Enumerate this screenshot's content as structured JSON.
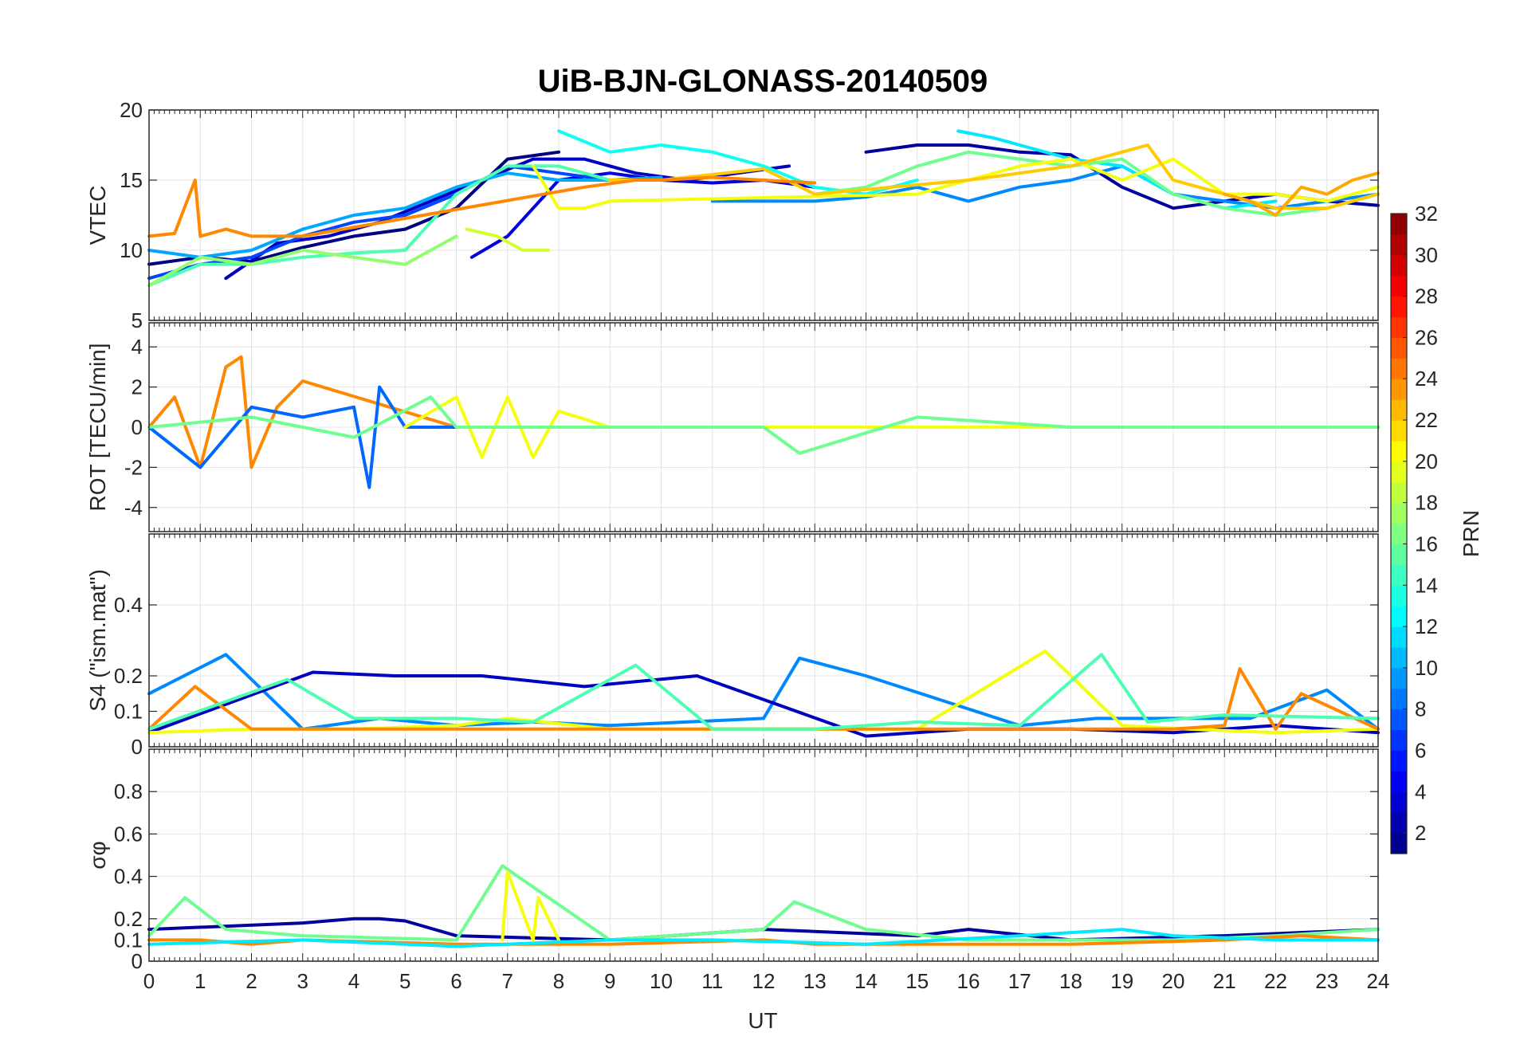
{
  "title": "UiB-BJN-GLONASS-20140509",
  "chart_data": {
    "type": "line",
    "title": "UiB-BJN-GLONASS-20140509",
    "xlabel": "UT",
    "xlim": [
      0,
      24
    ],
    "x_ticks": [
      "0",
      "1",
      "2",
      "3",
      "4",
      "5",
      "6",
      "7",
      "8",
      "9",
      "10",
      "11",
      "12",
      "13",
      "14",
      "15",
      "16",
      "17",
      "18",
      "19",
      "20",
      "21",
      "22",
      "23",
      "24"
    ],
    "grid": true,
    "colorbar": {
      "label": "PRN",
      "colormap": "jet",
      "range": [
        1,
        32
      ],
      "ticks": [
        "2",
        "4",
        "6",
        "8",
        "10",
        "12",
        "14",
        "16",
        "18",
        "20",
        "22",
        "24",
        "26",
        "28",
        "30",
        "32"
      ],
      "placement": "right"
    },
    "panels": [
      {
        "ylabel": "VTEC",
        "ylim": [
          5,
          20
        ],
        "y_ticks": [
          "5",
          "10",
          "15",
          "20"
        ],
        "series": [
          {
            "prn": 1,
            "x": [
              0,
              1,
              2,
              3,
              4,
              5,
              6,
              7,
              8
            ],
            "y": [
              9,
              9.5,
              9.2,
              10.2,
              11,
              11.5,
              13,
              16.5,
              17
            ]
          },
          {
            "prn": 3,
            "x": [
              1.5,
              2.5,
              3.5,
              4.5,
              5.5,
              6.5,
              7.5,
              8.5,
              9.5,
              10.5,
              11.5,
              12.5
            ],
            "y": [
              8,
              10.5,
              11,
              12,
              13.5,
              15,
              16.5,
              16.5,
              15.5,
              15,
              15.5,
              16
            ]
          },
          {
            "prn": 4,
            "x": [
              6.3,
              7,
              7.5,
              8,
              9,
              10,
              11,
              12,
              13
            ],
            "y": [
              9.5,
              11,
              13,
              15,
              15.5,
              15,
              14.8,
              15,
              14.5
            ]
          },
          {
            "prn": 2,
            "x": [
              14,
              15,
              16,
              17,
              18,
              19,
              20,
              21,
              22,
              23,
              24
            ],
            "y": [
              17,
              17.5,
              17.5,
              17,
              16.8,
              14.5,
              13,
              13.5,
              14,
              13.5,
              13.2
            ]
          },
          {
            "prn": 7,
            "x": [
              0,
              1,
              2,
              3,
              4,
              5,
              6,
              7,
              8,
              9
            ],
            "y": [
              8,
              9,
              9.5,
              11,
              12,
              12.5,
              14,
              16,
              15.5,
              15
            ]
          },
          {
            "prn": 9,
            "x": [
              11,
              12,
              13,
              14,
              15,
              16,
              17,
              18,
              19,
              20,
              21,
              22,
              23,
              24
            ],
            "y": [
              13.5,
              13.5,
              13.5,
              13.8,
              14.5,
              13.5,
              14.5,
              15,
              16,
              14,
              13.5,
              13,
              13.5,
              14
            ]
          },
          {
            "prn": 10,
            "x": [
              0,
              1,
              2,
              3,
              4,
              5,
              6,
              7,
              8,
              9,
              10
            ],
            "y": [
              10,
              9.5,
              10,
              11.5,
              12.5,
              13,
              14.5,
              15.5,
              15,
              15,
              15.2
            ]
          },
          {
            "prn": 12,
            "x": [
              15.8,
              16.5,
              17,
              18,
              19,
              20,
              21,
              22
            ],
            "y": [
              18.5,
              18,
              17.5,
              16.5,
              16,
              14,
              13,
              13.5
            ]
          },
          {
            "prn": 13,
            "x": [
              8,
              9,
              10,
              11,
              12,
              13,
              14,
              15
            ],
            "y": [
              18.5,
              17,
              17.5,
              17,
              16,
              14.5,
              14,
              15
            ]
          },
          {
            "prn": 15,
            "x": [
              0,
              1,
              2,
              3,
              4,
              5,
              6,
              7,
              8,
              9
            ],
            "y": [
              7.5,
              9,
              9,
              9.5,
              9.8,
              10,
              14,
              16,
              16,
              15
            ]
          },
          {
            "prn": 16,
            "x": [
              13,
              14,
              15,
              16,
              17,
              18,
              19,
              20,
              21,
              22,
              23,
              24
            ],
            "y": [
              14,
              14.5,
              16,
              17,
              16.5,
              16,
              16.5,
              14,
              13,
              12.5,
              13,
              14
            ]
          },
          {
            "prn": 17,
            "x": [
              0,
              1,
              2,
              3,
              4,
              5,
              6
            ],
            "y": [
              7.5,
              9.5,
              9,
              10,
              9.5,
              9,
              11
            ]
          },
          {
            "prn": 19,
            "x": [
              6.2,
              6.8,
              7.3,
              7.8
            ],
            "y": [
              11.5,
              11,
              10,
              10
            ]
          },
          {
            "prn": 20,
            "x": [
              7.5,
              8,
              8.5,
              9,
              15,
              16,
              17,
              18,
              19,
              20,
              21,
              22,
              23,
              24
            ],
            "y": [
              16,
              13,
              13,
              13.5,
              14,
              15,
              16,
              16.5,
              15,
              16.5,
              14,
              14,
              13.5,
              14.5
            ]
          },
          {
            "prn": 22,
            "x": [
              9,
              10,
              12,
              13,
              16,
              17,
              18,
              19,
              19.5,
              20,
              21,
              22,
              23,
              24
            ],
            "y": [
              15,
              15,
              15.8,
              14,
              15,
              15.5,
              16,
              17,
              17.5,
              15,
              14,
              13,
              13,
              14
            ]
          },
          {
            "prn": 24,
            "x": [
              0,
              0.5,
              0.9,
              1,
              1.5,
              2,
              2.5,
              3,
              8.5,
              9.5,
              10,
              11,
              12,
              13
            ],
            "y": [
              11,
              11.2,
              15,
              11,
              11.5,
              11,
              11,
              11,
              14.5,
              15,
              15,
              15.2,
              15,
              14.8
            ]
          },
          {
            "prn": 23,
            "x": [
              21,
              21.5,
              22,
              22.5,
              23,
              23.5,
              24
            ],
            "y": [
              14,
              13.5,
              12.5,
              14.5,
              14,
              15,
              15.5
            ]
          }
        ]
      },
      {
        "ylabel": "ROT [TECU/min]",
        "ylim": [
          -5.2,
          5.2
        ],
        "y_ticks": [
          "-4",
          "-2",
          "0",
          "2",
          "4"
        ],
        "series": [
          {
            "prn": 24,
            "x": [
              0,
              0.5,
              1,
              1.5,
              1.8,
              2,
              2.5,
              3,
              6,
              9,
              12,
              15,
              18,
              21,
              24
            ],
            "y": [
              0,
              1.5,
              -2,
              3,
              3.5,
              -2,
              1,
              2.3,
              0,
              0,
              0,
              0,
              0,
              0,
              0
            ]
          },
          {
            "prn": 8,
            "x": [
              0,
              1,
              2,
              3,
              4,
              4.3,
              4.5,
              5,
              6,
              9,
              12,
              15,
              18,
              21,
              24
            ],
            "y": [
              0,
              -2,
              1,
              0.5,
              1,
              -3,
              2,
              0,
              0,
              0,
              0,
              0,
              0,
              0,
              0
            ]
          },
          {
            "prn": 20,
            "x": [
              5,
              6,
              6.5,
              7,
              7.5,
              8,
              9,
              12,
              15,
              18,
              21,
              24
            ],
            "y": [
              0,
              1.5,
              -1.5,
              1.5,
              -1.5,
              0.8,
              0,
              0,
              0,
              0,
              0,
              0
            ]
          },
          {
            "prn": 16,
            "x": [
              0,
              2,
              4,
              5.5,
              6,
              9,
              12,
              12.7,
              15,
              18,
              21,
              24
            ],
            "y": [
              0,
              0.5,
              -0.5,
              1.5,
              0,
              0,
              0,
              -1.3,
              0.5,
              0,
              0,
              0
            ]
          }
        ]
      },
      {
        "ylabel": "S4 (\"ism.mat\")",
        "ylim": [
          0,
          0.6
        ],
        "y_ticks": [
          "0",
          "0.1",
          "0.2",
          "0.4"
        ],
        "series": [
          {
            "prn": 9,
            "x": [
              0,
              1.5,
              3,
              4.5,
              6,
              7.5,
              9,
              10.5,
              12,
              12.7,
              14,
              15.5,
              17,
              18.5,
              20,
              21.5,
              23,
              24
            ],
            "y": [
              0.15,
              0.26,
              0.05,
              0.08,
              0.06,
              0.07,
              0.06,
              0.07,
              0.08,
              0.25,
              0.2,
              0.13,
              0.06,
              0.08,
              0.08,
              0.08,
              0.16,
              0.05
            ]
          },
          {
            "prn": 3,
            "x": [
              0,
              3.2,
              4.8,
              6.5,
              8.5,
              10.7,
              14,
              16,
              18,
              20,
              22,
              24
            ],
            "y": [
              0.04,
              0.21,
              0.2,
              0.2,
              0.17,
              0.2,
              0.03,
              0.05,
              0.05,
              0.04,
              0.06,
              0.04
            ]
          },
          {
            "prn": 20,
            "x": [
              0,
              2,
              4,
              6,
              7,
              9,
              11,
              13,
              15,
              17.5,
              19,
              20.3,
              22,
              24
            ],
            "y": [
              0.04,
              0.05,
              0.05,
              0.06,
              0.08,
              0.05,
              0.05,
              0.05,
              0.05,
              0.27,
              0.06,
              0.05,
              0.04,
              0.05
            ]
          },
          {
            "prn": 24,
            "x": [
              0,
              0.9,
              2,
              4,
              6,
              8,
              10,
              12,
              14,
              16,
              18,
              20,
              21,
              21.3,
              22,
              22.5,
              24
            ],
            "y": [
              0.05,
              0.17,
              0.05,
              0.05,
              0.05,
              0.05,
              0.05,
              0.05,
              0.05,
              0.05,
              0.05,
              0.05,
              0.06,
              0.22,
              0.05,
              0.15,
              0.05
            ]
          },
          {
            "prn": 15,
            "x": [
              0,
              2.7,
              4,
              6,
              7.5,
              9.5,
              11,
              13,
              15,
              17,
              18.6,
              19.5,
              21,
              24
            ],
            "y": [
              0.05,
              0.19,
              0.08,
              0.08,
              0.07,
              0.23,
              0.05,
              0.05,
              0.07,
              0.06,
              0.26,
              0.07,
              0.09,
              0.08
            ]
          }
        ]
      },
      {
        "ylabel": "σφ",
        "ylim": [
          0,
          1
        ],
        "y_ticks": [
          "0",
          "0.1",
          "0.2",
          "0.4",
          "0.6",
          "0.8"
        ],
        "series": [
          {
            "prn": 2,
            "x": [
              0,
              3,
              4,
              4.5,
              5,
              6,
              9,
              12,
              15,
              16,
              18,
              21,
              24
            ],
            "y": [
              0.15,
              0.18,
              0.2,
              0.2,
              0.19,
              0.12,
              0.1,
              0.15,
              0.12,
              0.15,
              0.1,
              0.12,
              0.15
            ]
          },
          {
            "prn": 16,
            "x": [
              0,
              0.7,
              1.5,
              3,
              6,
              6.9,
              9,
              12,
              12.6,
              14,
              16,
              18,
              20,
              22,
              24
            ],
            "y": [
              0.12,
              0.3,
              0.15,
              0.12,
              0.1,
              0.45,
              0.1,
              0.15,
              0.28,
              0.15,
              0.1,
              0.1,
              0.1,
              0.12,
              0.15
            ]
          },
          {
            "prn": 20,
            "x": [
              6.9,
              7,
              7.5,
              7.6,
              8
            ],
            "y": [
              0.1,
              0.42,
              0.1,
              0.3,
              0.1
            ]
          },
          {
            "prn": 24,
            "x": [
              0,
              1,
              2,
              3,
              6,
              9,
              12,
              13,
              15,
              18,
              21,
              22.5,
              24
            ],
            "y": [
              0.1,
              0.1,
              0.08,
              0.1,
              0.08,
              0.08,
              0.1,
              0.08,
              0.08,
              0.08,
              0.1,
              0.12,
              0.1
            ]
          },
          {
            "prn": 12,
            "x": [
              0,
              3,
              6,
              9,
              11,
              14,
              17,
              19,
              20,
              22,
              24
            ],
            "y": [
              0.08,
              0.1,
              0.07,
              0.1,
              0.1,
              0.08,
              0.12,
              0.15,
              0.12,
              0.1,
              0.1
            ]
          }
        ]
      }
    ]
  }
}
